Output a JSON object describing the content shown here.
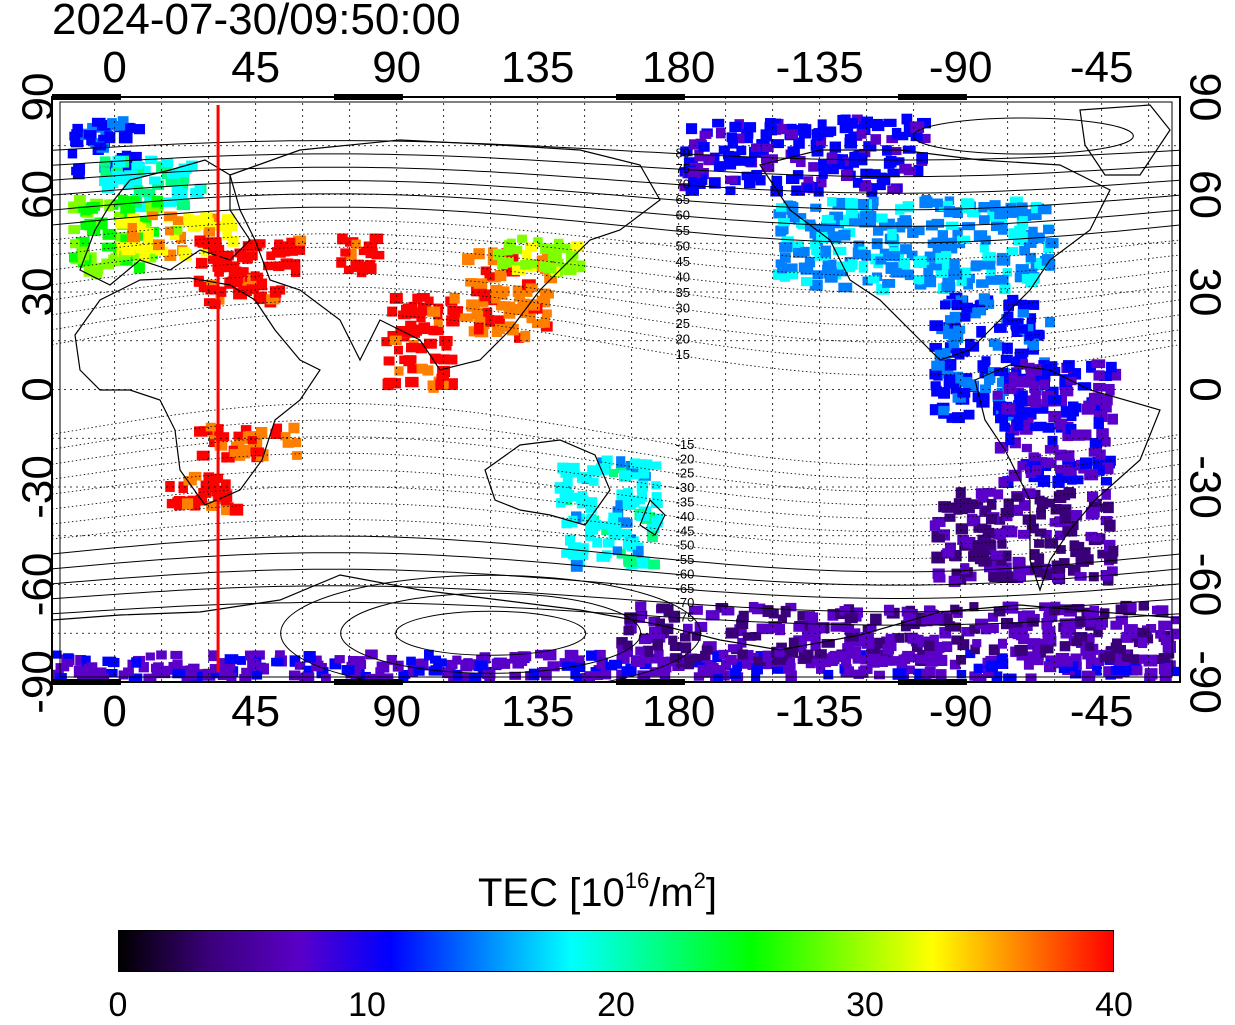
{
  "title": "2024-07-30/09:50:00",
  "map": {
    "lon_ticks": [
      "0",
      "45",
      "90",
      "135",
      "180",
      "-135",
      "-90",
      "-45"
    ],
    "lat_ticks": [
      "90",
      "60",
      "30",
      "0",
      "-30",
      "-60",
      "-90"
    ],
    "lon_range": [
      -20,
      340
    ],
    "lat_range": [
      -90,
      90
    ],
    "terminator_lon": 33,
    "terminator_color": "#ff0000",
    "magnetic_latitude_labels": {
      "north": [
        "80",
        "75",
        "70",
        "65",
        "60",
        "55",
        "50",
        "45",
        "40",
        "35",
        "30",
        "25",
        "20",
        "15"
      ],
      "south": [
        "-15",
        "-20",
        "-25",
        "-30",
        "-35",
        "-40",
        "-45",
        "-50",
        "-55",
        "-60",
        "-65",
        "-70",
        "-75"
      ]
    }
  },
  "colorbar": {
    "title_prefix": "TEC  [10",
    "title_exp1": "16",
    "title_mid": "/m",
    "title_exp2": "2",
    "title_suffix": "]",
    "ticks": [
      "0",
      "10",
      "20",
      "30",
      "40"
    ],
    "min": 0,
    "max": 40,
    "colors": [
      "#000000",
      "#3a007a",
      "#5a00c8",
      "#0000ff",
      "#0080ff",
      "#00ffff",
      "#00ff80",
      "#00ff00",
      "#80ff00",
      "#ffff00",
      "#ff8000",
      "#ff0000"
    ]
  },
  "chart_data": {
    "type": "heatmap",
    "quantity": "TEC",
    "regions": [
      {
        "lon": [
          -15,
          10
        ],
        "lat": [
          65,
          85
        ],
        "tec": 12
      },
      {
        "lon": [
          -5,
          30
        ],
        "lat": [
          55,
          72
        ],
        "tec": 20
      },
      {
        "lon": [
          -15,
          15
        ],
        "lat": [
          35,
          60
        ],
        "tec": 27
      },
      {
        "lon": [
          0,
          40
        ],
        "lat": [
          40,
          55
        ],
        "tec": 33
      },
      {
        "lon": [
          25,
          60
        ],
        "lat": [
          25,
          48
        ],
        "tec": 40
      },
      {
        "lon": [
          70,
          85
        ],
        "lat": [
          35,
          48
        ],
        "tec": 40
      },
      {
        "lon": [
          85,
          110
        ],
        "lat": [
          0,
          30
        ],
        "tec": 40
      },
      {
        "lon": [
          110,
          140
        ],
        "lat": [
          15,
          45
        ],
        "tec": 37
      },
      {
        "lon": [
          120,
          150
        ],
        "lat": [
          35,
          48
        ],
        "tec": 30
      },
      {
        "lon": [
          15,
          40
        ],
        "lat": [
          -38,
          -25
        ],
        "tec": 40
      },
      {
        "lon": [
          25,
          60
        ],
        "lat": [
          -22,
          -10
        ],
        "tec": 38
      },
      {
        "lon": [
          140,
          175
        ],
        "lat": [
          -55,
          -20
        ],
        "tec": 18
      },
      {
        "lon": [
          180,
          260
        ],
        "lat": [
          60,
          85
        ],
        "tec": 10
      },
      {
        "lon": [
          210,
          300
        ],
        "lat": [
          30,
          60
        ],
        "tec": 16
      },
      {
        "lon": [
          260,
          300
        ],
        "lat": [
          -10,
          30
        ],
        "tec": 12
      },
      {
        "lon": [
          280,
          320
        ],
        "lat": [
          -30,
          10
        ],
        "tec": 9
      },
      {
        "lon": [
          260,
          320
        ],
        "lat": [
          -60,
          -30
        ],
        "tec": 5
      },
      {
        "lon": [
          -20,
          340
        ],
        "lat": [
          -90,
          -80
        ],
        "tec": 8
      },
      {
        "lon": [
          160,
          340
        ],
        "lat": [
          -85,
          -65
        ],
        "tec": 6
      }
    ]
  }
}
